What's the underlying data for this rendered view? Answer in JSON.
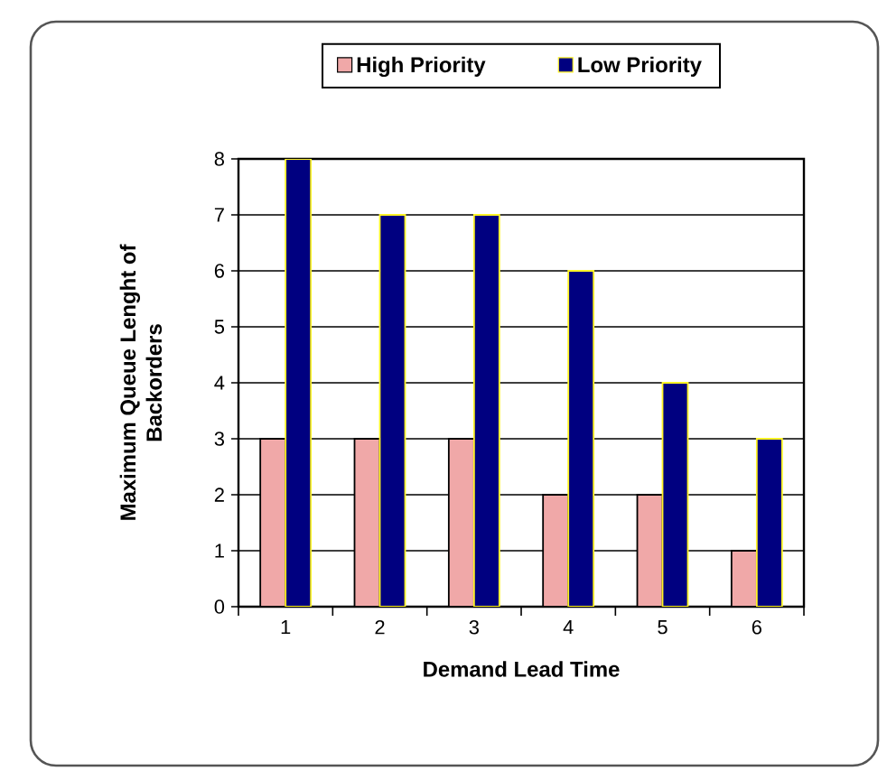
{
  "chart_data": {
    "type": "bar",
    "xlabel": "Demand Lead Time",
    "ylabel": "Maximum Queue Lenght of Backorders",
    "categories": [
      "1",
      "2",
      "3",
      "4",
      "5",
      "6"
    ],
    "series": [
      {
        "name": "High Priority",
        "color": "#f0a8a8",
        "values": [
          3,
          3,
          3,
          2,
          2,
          1
        ]
      },
      {
        "name": "Low Priority",
        "color": "#000080",
        "values": [
          8,
          7,
          7,
          6,
          4,
          3
        ]
      }
    ],
    "ylim": [
      0,
      8
    ],
    "yticks": [
      0,
      1,
      2,
      3,
      4,
      5,
      6,
      7,
      8
    ],
    "grid": "y",
    "legend": "top"
  }
}
